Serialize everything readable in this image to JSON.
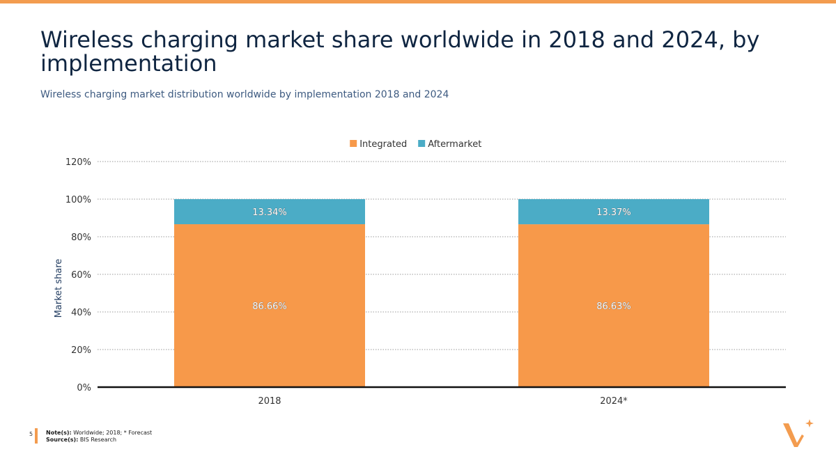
{
  "title": "Wireless charging market share worldwide in 2018 and 2024, by implementation",
  "subtitle": "Wireless charging market distribution worldwide by implementation 2018 and 2024",
  "footer": {
    "page_number": "5",
    "note_label": "Note(s):",
    "note_text": "Worldwide; 2018; * Forecast",
    "source_label": "Source(s):",
    "source_text": "BIS Research"
  },
  "colors": {
    "accent": "#f39c4f",
    "integrated": "#f7994a",
    "aftermarket": "#4bacc6",
    "title": "#0f2541"
  },
  "chart_data": {
    "type": "bar",
    "stacked": true,
    "categories": [
      "2018",
      "2024*"
    ],
    "series": [
      {
        "name": "Integrated",
        "values": [
          86.66,
          86.63
        ],
        "labels": [
          "86.66%",
          "86.63%"
        ]
      },
      {
        "name": "Aftermarket",
        "values": [
          13.34,
          13.37
        ],
        "labels": [
          "13.34%",
          "13.37%"
        ]
      }
    ],
    "ylabel": "Market share",
    "xlabel": "",
    "ylim": [
      0,
      120
    ],
    "yticks": [
      0,
      20,
      40,
      60,
      80,
      100,
      120
    ],
    "ytick_labels": [
      "0%",
      "20%",
      "40%",
      "60%",
      "80%",
      "100%",
      "120%"
    ],
    "grid": true,
    "legend_position": "top-center"
  }
}
